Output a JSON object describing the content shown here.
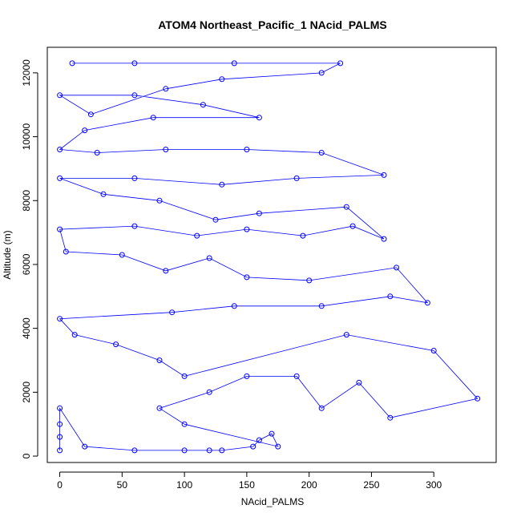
{
  "chart_data": {
    "type": "line",
    "title": "ATOM4 Northeast_Pacific_1 NAcid_PALMS",
    "xlabel": "NAcid_PALMS",
    "ylabel": "Altitude (m)",
    "xlim": [
      -10,
      350
    ],
    "ylim": [
      -200,
      12800
    ],
    "xticks": [
      0,
      50,
      100,
      150,
      200,
      250,
      300
    ],
    "yticks": [
      0,
      2000,
      4000,
      6000,
      8000,
      10000,
      12000
    ],
    "grid": false,
    "legend": "none",
    "color": "#0000ff",
    "series": [
      {
        "values": [
          {
            "x": 0,
            "y": 180
          },
          {
            "x": 0,
            "y": 600
          },
          {
            "x": 0,
            "y": 1000
          },
          {
            "x": 0,
            "y": 1500
          },
          {
            "x": 20,
            "y": 300
          },
          {
            "x": 60,
            "y": 180
          },
          {
            "x": 100,
            "y": 180
          },
          {
            "x": 120,
            "y": 180
          },
          {
            "x": 130,
            "y": 180
          },
          {
            "x": 155,
            "y": 300
          },
          {
            "x": 160,
            "y": 500
          },
          {
            "x": 170,
            "y": 700
          },
          {
            "x": 175,
            "y": 300
          },
          {
            "x": 100,
            "y": 1000
          },
          {
            "x": 80,
            "y": 1500
          },
          {
            "x": 120,
            "y": 2000
          },
          {
            "x": 150,
            "y": 2500
          },
          {
            "x": 190,
            "y": 2500
          },
          {
            "x": 210,
            "y": 1500
          },
          {
            "x": 240,
            "y": 2300
          },
          {
            "x": 265,
            "y": 1200
          },
          {
            "x": 335,
            "y": 1800
          },
          {
            "x": 300,
            "y": 3300
          },
          {
            "x": 230,
            "y": 3800
          },
          {
            "x": 100,
            "y": 2500
          },
          {
            "x": 80,
            "y": 3000
          },
          {
            "x": 45,
            "y": 3500
          },
          {
            "x": 12,
            "y": 3800
          },
          {
            "x": 0,
            "y": 4300
          },
          {
            "x": 90,
            "y": 4500
          },
          {
            "x": 140,
            "y": 4700
          },
          {
            "x": 210,
            "y": 4700
          },
          {
            "x": 265,
            "y": 5000
          },
          {
            "x": 295,
            "y": 4800
          },
          {
            "x": 270,
            "y": 5900
          },
          {
            "x": 200,
            "y": 5500
          },
          {
            "x": 150,
            "y": 5600
          },
          {
            "x": 120,
            "y": 6200
          },
          {
            "x": 85,
            "y": 5800
          },
          {
            "x": 50,
            "y": 6300
          },
          {
            "x": 5,
            "y": 6400
          },
          {
            "x": 0,
            "y": 7100
          },
          {
            "x": 60,
            "y": 7200
          },
          {
            "x": 110,
            "y": 6900
          },
          {
            "x": 150,
            "y": 7100
          },
          {
            "x": 195,
            "y": 6900
          },
          {
            "x": 235,
            "y": 7200
          },
          {
            "x": 260,
            "y": 6800
          },
          {
            "x": 230,
            "y": 7800
          },
          {
            "x": 160,
            "y": 7600
          },
          {
            "x": 125,
            "y": 7400
          },
          {
            "x": 80,
            "y": 8000
          },
          {
            "x": 35,
            "y": 8200
          },
          {
            "x": 0,
            "y": 8700
          },
          {
            "x": 60,
            "y": 8700
          },
          {
            "x": 130,
            "y": 8500
          },
          {
            "x": 190,
            "y": 8700
          },
          {
            "x": 260,
            "y": 8800
          },
          {
            "x": 210,
            "y": 9500
          },
          {
            "x": 150,
            "y": 9600
          },
          {
            "x": 85,
            "y": 9600
          },
          {
            "x": 30,
            "y": 9500
          },
          {
            "x": 0,
            "y": 9600
          },
          {
            "x": 20,
            "y": 10200
          },
          {
            "x": 75,
            "y": 10600
          },
          {
            "x": 160,
            "y": 10600
          },
          {
            "x": 115,
            "y": 11000
          },
          {
            "x": 60,
            "y": 11300
          },
          {
            "x": 0,
            "y": 11300
          },
          {
            "x": 25,
            "y": 10700
          },
          {
            "x": 85,
            "y": 11500
          },
          {
            "x": 130,
            "y": 11800
          },
          {
            "x": 210,
            "y": 12000
          },
          {
            "x": 225,
            "y": 12300
          },
          {
            "x": 140,
            "y": 12300
          },
          {
            "x": 60,
            "y": 12300
          },
          {
            "x": 10,
            "y": 12300
          }
        ]
      }
    ]
  }
}
